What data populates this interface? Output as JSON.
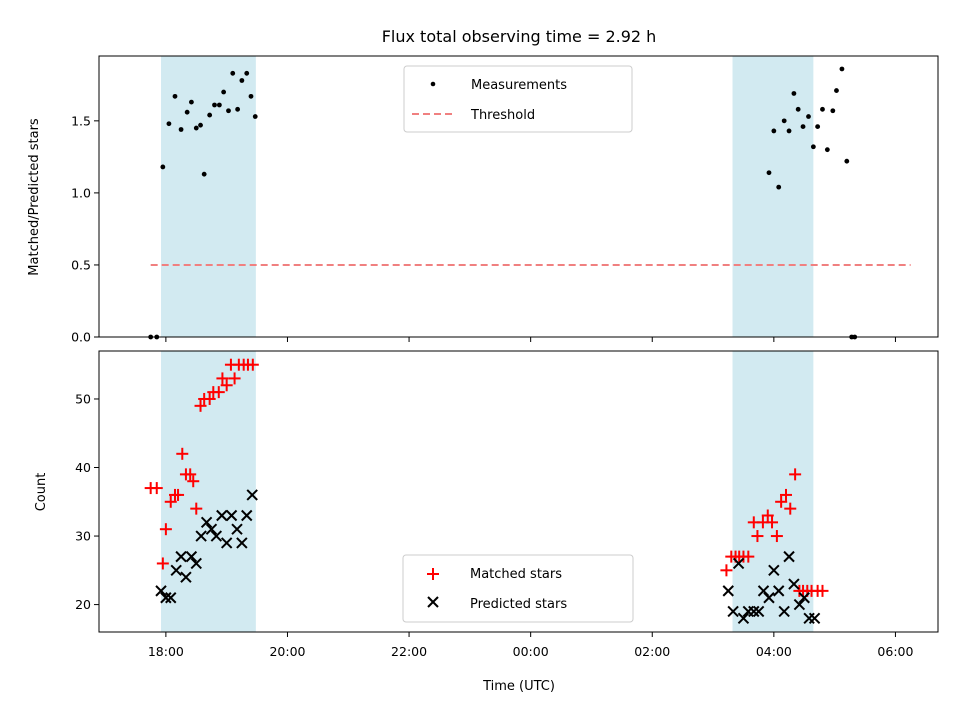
{
  "chart_data": [
    {
      "type": "scatter",
      "title": "Flux total observing time = 2.92 h",
      "xlabel": "",
      "ylabel": "Matched/Predicted stars",
      "ylim": [
        0,
        1.95
      ],
      "xlim_hours": [
        -1.1,
        12.7
      ],
      "yticks": [
        0.0,
        0.5,
        1.0,
        1.5
      ],
      "ytick_labels": [
        "0.0",
        "0.5",
        "1.0",
        "1.5"
      ],
      "legend_position": "upper-center",
      "shaded_intervals_hours": [
        [
          -0.08,
          1.48
        ],
        [
          9.32,
          10.65
        ]
      ],
      "shade_color": "#add8e6",
      "series": [
        {
          "name": "Measurements",
          "marker": "dot",
          "color": "#000000",
          "x_hours": [
            -0.25,
            -0.15,
            -0.05,
            0.05,
            0.15,
            0.25,
            0.35,
            0.42,
            0.5,
            0.57,
            0.63,
            0.72,
            0.8,
            0.88,
            0.95,
            1.03,
            1.1,
            1.18,
            1.25,
            1.33,
            1.4,
            1.47,
            9.92,
            10.0,
            10.08,
            10.17,
            10.25,
            10.33,
            10.4,
            10.48,
            10.57,
            10.65,
            10.72,
            10.8,
            10.88,
            10.97,
            11.03,
            11.12,
            11.2,
            11.28,
            11.33
          ],
          "values": [
            0.0,
            0.0,
            1.18,
            1.48,
            1.67,
            1.44,
            1.56,
            1.63,
            1.45,
            1.47,
            1.13,
            1.54,
            1.61,
            1.61,
            1.7,
            1.57,
            1.83,
            1.58,
            1.78,
            1.83,
            1.67,
            1.53,
            1.14,
            1.43,
            1.04,
            1.5,
            1.43,
            1.69,
            1.58,
            1.46,
            1.53,
            1.32,
            1.46,
            1.58,
            1.3,
            1.57,
            1.71,
            1.86,
            1.22,
            0.0,
            0.0
          ]
        },
        {
          "name": "Threshold",
          "marker": "dashed-line",
          "color": "#f08080",
          "x_hours": [
            -0.25,
            12.25
          ],
          "values": [
            0.5,
            0.5
          ]
        }
      ]
    },
    {
      "type": "scatter",
      "title": "",
      "xlabel": "Time (UTC)",
      "ylabel": "Count",
      "ylim": [
        16,
        57
      ],
      "xlim_hours": [
        -1.1,
        12.7
      ],
      "yticks": [
        20,
        30,
        40,
        50
      ],
      "ytick_labels": [
        "20",
        "30",
        "40",
        "50"
      ],
      "xticks_hours": [
        0,
        2,
        4,
        6,
        8,
        10,
        12
      ],
      "xtick_labels": [
        "18:00",
        "20:00",
        "22:00",
        "00:00",
        "02:00",
        "04:00",
        "06:00"
      ],
      "legend_position": "lower-center",
      "shaded_intervals_hours": [
        [
          -0.08,
          1.48
        ],
        [
          9.32,
          10.65
        ]
      ],
      "shade_color": "#add8e6",
      "series": [
        {
          "name": "Matched stars",
          "marker": "plus",
          "color": "#ff0000",
          "x_hours": [
            -0.25,
            -0.15,
            -0.05,
            0.0,
            0.08,
            0.15,
            0.2,
            0.27,
            0.33,
            0.4,
            0.45,
            0.5,
            0.57,
            0.63,
            0.72,
            0.78,
            0.87,
            0.93,
            1.0,
            1.07,
            1.13,
            1.2,
            1.28,
            1.35,
            1.43,
            9.22,
            9.3,
            9.37,
            9.43,
            9.5,
            9.58,
            9.67,
            9.73,
            9.82,
            9.9,
            9.97,
            10.05,
            10.12,
            10.2,
            10.27,
            10.35,
            10.42,
            10.48,
            10.55,
            10.62,
            10.72,
            10.8
          ],
          "values": [
            37,
            37,
            26,
            31,
            35,
            36,
            36,
            42,
            39,
            39,
            38,
            34,
            49,
            50,
            50,
            51,
            51,
            53,
            52,
            55,
            53,
            55,
            55,
            55,
            55,
            25,
            27,
            27,
            27,
            27,
            27,
            32,
            30,
            32,
            33,
            32,
            30,
            35,
            36,
            34,
            39,
            22,
            22,
            22,
            22,
            22,
            22
          ],
          "note": ""
        },
        {
          "name": "Predicted stars",
          "marker": "x",
          "color": "#000000",
          "x_hours": [
            -0.08,
            0.0,
            0.08,
            0.17,
            0.25,
            0.33,
            0.42,
            0.5,
            0.58,
            0.67,
            0.75,
            0.83,
            0.92,
            1.0,
            1.08,
            1.17,
            1.25,
            1.33,
            1.42,
            9.25,
            9.33,
            9.42,
            9.5,
            9.58,
            9.67,
            9.75,
            9.83,
            9.92,
            10.0,
            10.08,
            10.17,
            10.25,
            10.33,
            10.42,
            10.5,
            10.58,
            10.67
          ],
          "values": [
            22,
            21,
            21,
            25,
            27,
            24,
            27,
            26,
            30,
            32,
            31,
            30,
            33,
            29,
            33,
            31,
            29,
            33,
            36,
            22,
            19,
            26,
            18,
            19,
            19,
            19,
            22,
            21,
            25,
            22,
            19,
            27,
            23,
            20,
            21,
            18,
            18
          ]
        }
      ]
    }
  ]
}
